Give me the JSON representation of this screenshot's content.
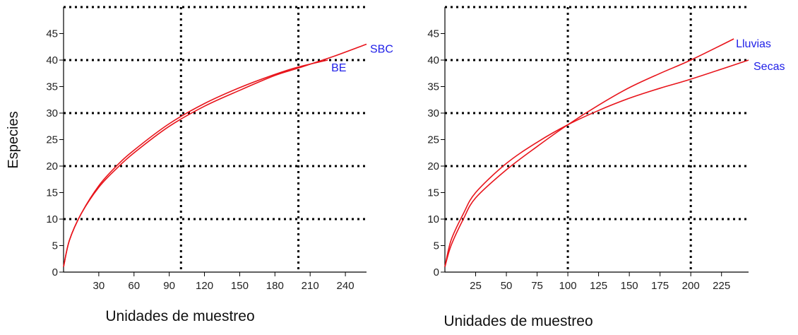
{
  "colors": {
    "curve": "#e8141b",
    "label": "#2020e8",
    "axis": "#000000",
    "grid": "#000000"
  },
  "chart_data": [
    {
      "type": "line",
      "ylabel": "Especies",
      "xlabel": "Unidades de muestreo",
      "xlim": [
        0,
        258
      ],
      "ylim": [
        0,
        50
      ],
      "xticks": [
        30,
        60,
        90,
        120,
        150,
        180,
        210,
        240
      ],
      "yticks": [
        0,
        5,
        10,
        15,
        20,
        25,
        30,
        35,
        40,
        45
      ],
      "gridlines_x": [
        100,
        200
      ],
      "gridlines_y": [
        10,
        20,
        30,
        40,
        50
      ],
      "series": [
        {
          "name": "SBC",
          "x": [
            0,
            5,
            15,
            30,
            45,
            60,
            90,
            120,
            150,
            180,
            200,
            230,
            258
          ],
          "y": [
            1,
            6,
            11,
            16,
            19.5,
            22.5,
            27.5,
            31.3,
            34.3,
            37.1,
            38.5,
            40.7,
            43
          ]
        },
        {
          "name": "BE",
          "x": [
            0,
            5,
            15,
            30,
            45,
            60,
            90,
            120,
            150,
            180,
            200,
            225
          ],
          "y": [
            1,
            6,
            11,
            16.3,
            20,
            23,
            28,
            31.8,
            34.8,
            37.3,
            38.7,
            40
          ]
        }
      ]
    },
    {
      "type": "line",
      "ylabel": "",
      "xlabel": "Unidades de muestreo",
      "xlim": [
        0,
        247
      ],
      "ylim": [
        0,
        50
      ],
      "xticks": [
        25,
        50,
        75,
        100,
        125,
        150,
        175,
        200,
        225
      ],
      "yticks": [
        0,
        5,
        10,
        15,
        20,
        25,
        30,
        35,
        40,
        45
      ],
      "gridlines_x": [
        100,
        200
      ],
      "gridlines_y": [
        10,
        20,
        30,
        40,
        50
      ],
      "series": [
        {
          "name": "Lluvias",
          "x": [
            0,
            5,
            15,
            25,
            50,
            75,
            100,
            125,
            150,
            175,
            200,
            235
          ],
          "y": [
            1,
            5,
            10,
            14,
            19.3,
            23.7,
            27.8,
            31.5,
            34.8,
            37.5,
            40,
            44
          ]
        },
        {
          "name": "Secas",
          "x": [
            0,
            5,
            15,
            25,
            50,
            75,
            100,
            125,
            150,
            175,
            200,
            247
          ],
          "y": [
            1,
            6,
            11,
            15,
            20.5,
            24.5,
            27.8,
            30.5,
            32.8,
            34.7,
            36.4,
            40
          ]
        }
      ]
    }
  ]
}
